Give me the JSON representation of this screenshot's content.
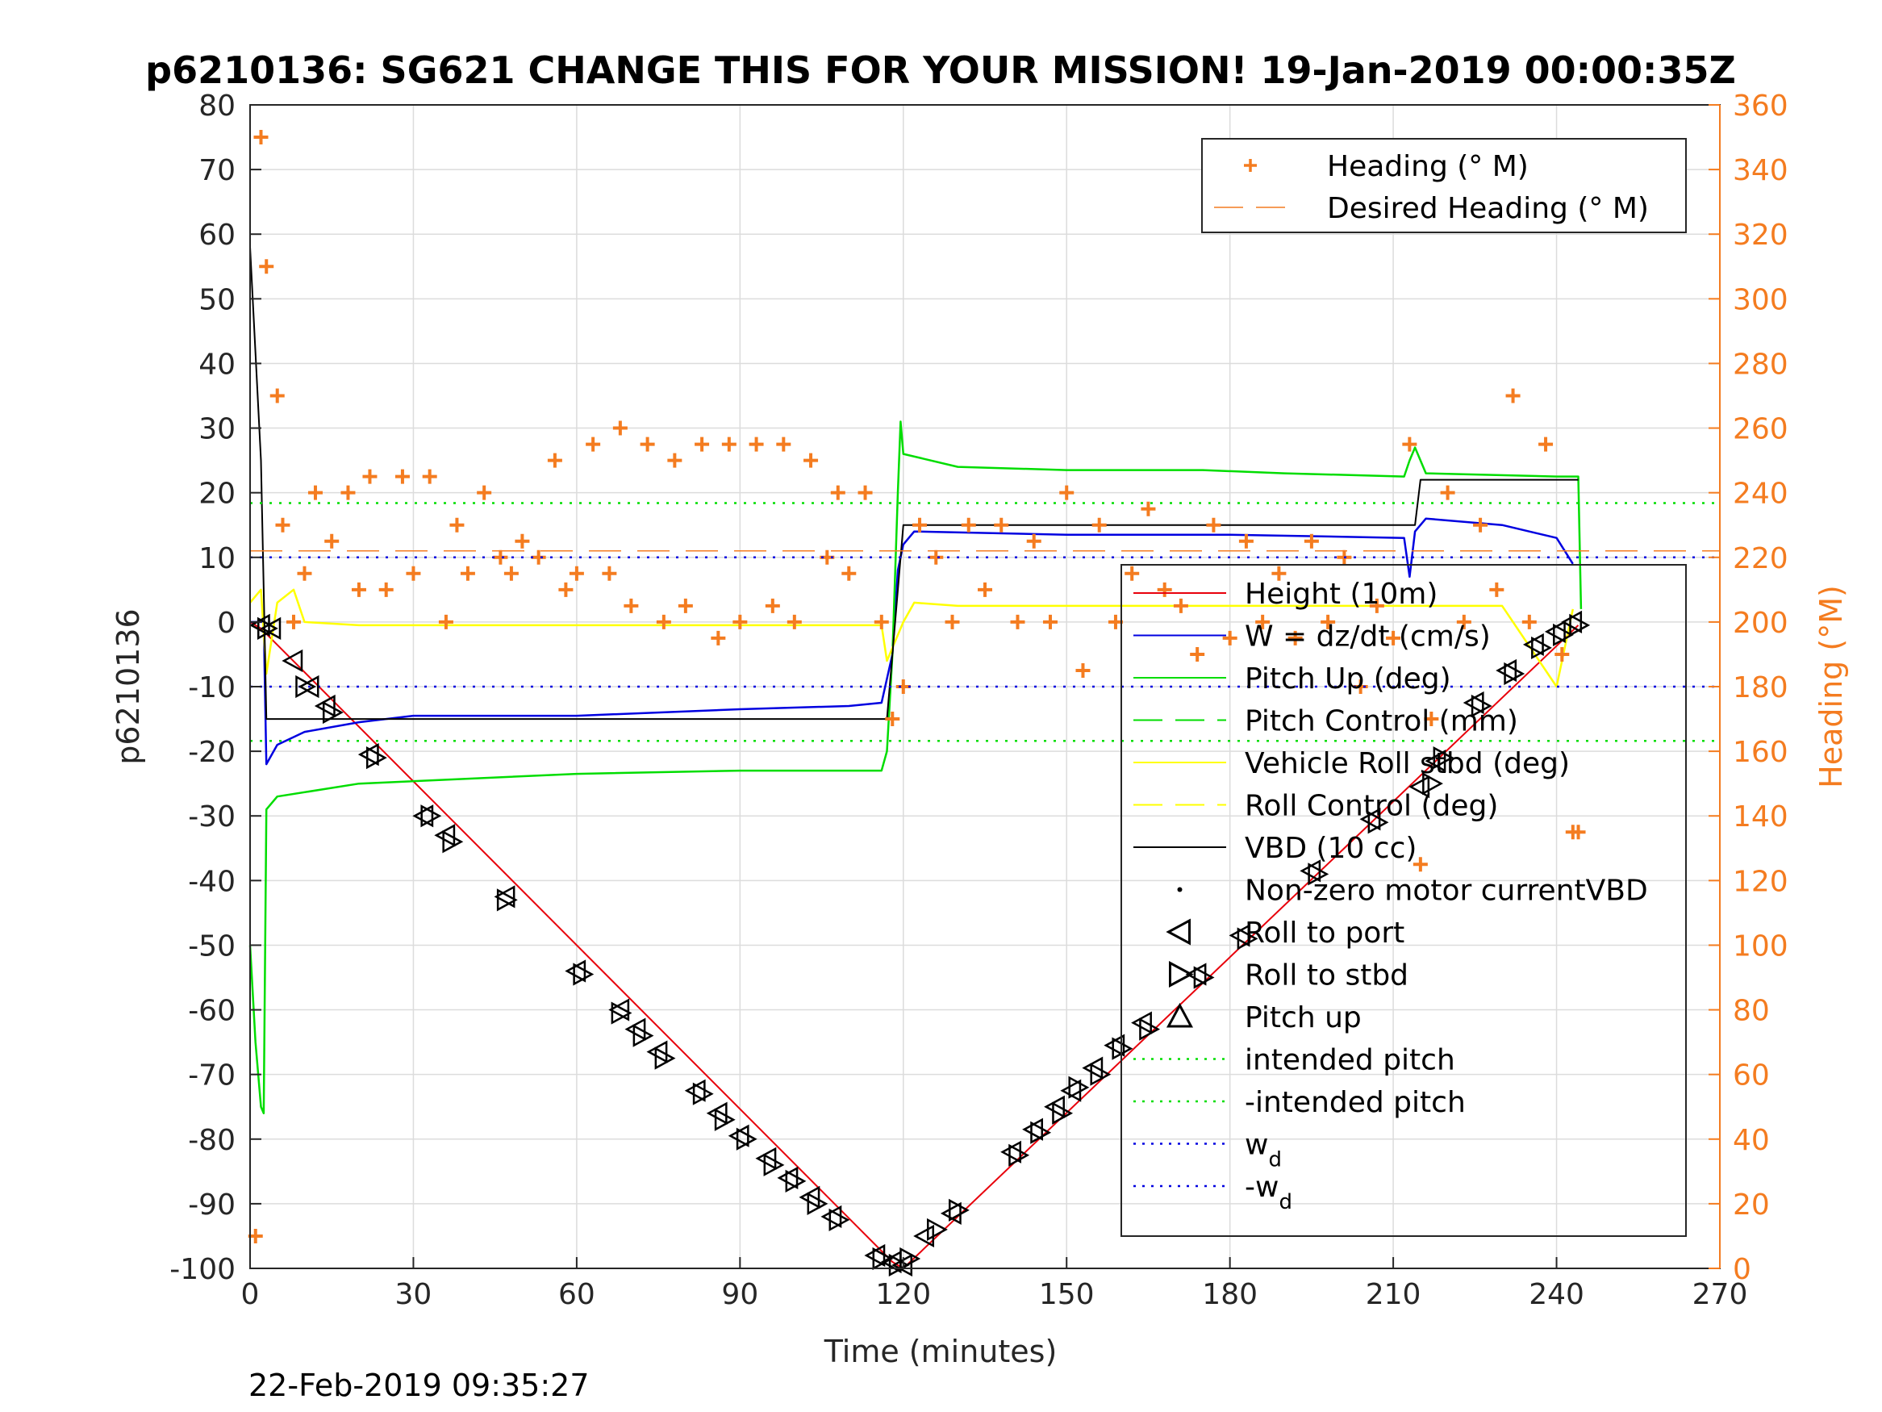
{
  "chart_data": {
    "type": "line",
    "title": "p6210136: SG621 CHANGE THIS FOR YOUR MISSION! 19-Jan-2019 00:00:35Z",
    "xlabel": "Time (minutes)",
    "ylabel": "p6210136",
    "y2label": "Heading (°M)",
    "xlim": [
      0,
      270
    ],
    "ylim": [
      -100,
      80
    ],
    "y2lim": [
      0,
      360
    ],
    "xticks": [
      "0",
      "30",
      "60",
      "90",
      "120",
      "150",
      "180",
      "210",
      "240",
      "270"
    ],
    "yticks": [
      "80",
      "70",
      "60",
      "50",
      "40",
      "30",
      "20",
      "10",
      "0",
      "-10",
      "-20",
      "-30",
      "-40",
      "-50",
      "-60",
      "-70",
      "-80",
      "-90",
      "-100"
    ],
    "y2ticks": [
      "360",
      "340",
      "320",
      "300",
      "280",
      "260",
      "240",
      "220",
      "200",
      "180",
      "160",
      "140",
      "120",
      "100",
      "80",
      "60",
      "40",
      "20",
      "0"
    ],
    "grid": true,
    "timestamp": "22-Feb-2019 09:35:27",
    "colors": {
      "heading": "#f47c20",
      "height": "#e8000b",
      "w": "#0000e0",
      "pitch": "#00dd00",
      "roll": "#ffff00",
      "vbd": "#000000",
      "axis_right": "#f47c20"
    },
    "legend_top": [
      {
        "label": "Heading (° M)",
        "style": "plus-orange"
      },
      {
        "label": "Desired Heading (° M)",
        "style": "dash-orange"
      }
    ],
    "legend_main": [
      {
        "label": "Height (10m)",
        "style": "line-red"
      },
      {
        "label": "W = dz/dt (cm/s)",
        "style": "line-blue"
      },
      {
        "label": "Pitch Up (deg)",
        "style": "line-green"
      },
      {
        "label": "Pitch Control (mm)",
        "style": "dash-green"
      },
      {
        "label": "Vehicle Roll stbd (deg)",
        "style": "line-yellow"
      },
      {
        "label": "Roll Control (deg)",
        "style": "dash-yellow"
      },
      {
        "label": "VBD (10 cc)",
        "style": "line-black"
      },
      {
        "label": "Non-zero motor currentVBD",
        "style": "dot-black"
      },
      {
        "label": "Roll to port",
        "style": "tri-left"
      },
      {
        "label": "Roll to stbd",
        "style": "tri-right"
      },
      {
        "label": "Pitch up",
        "style": "tri-up"
      },
      {
        "label": "intended pitch",
        "style": "dot-green"
      },
      {
        "label": "-intended pitch",
        "style": "dot-green"
      },
      {
        "label": "w",
        "sub": "d",
        "style": "dot-blue"
      },
      {
        "label": "-w",
        "sub": "d",
        "style": "dot-blue"
      }
    ],
    "series": [
      {
        "name": "Height (10m)",
        "axis": "left",
        "x": [
          0,
          2,
          118,
          120,
          244
        ],
        "y": [
          0,
          -1,
          -99,
          -100,
          -0.5
        ]
      },
      {
        "name": "W = dz/dt (cm/s)",
        "axis": "left",
        "x": [
          0,
          2.5,
          3,
          5,
          10,
          20,
          30,
          60,
          90,
          110,
          116,
          118,
          119,
          120,
          122,
          150,
          180,
          212,
          213,
          214,
          216,
          230,
          240,
          243
        ],
        "y": [
          0,
          0,
          -22,
          -19,
          -17,
          -15.5,
          -14.5,
          -14.5,
          -13.5,
          -13,
          -12.5,
          -5,
          8,
          12,
          14,
          13.5,
          13.5,
          13,
          7,
          14,
          16,
          15,
          13,
          9
        ]
      },
      {
        "name": "Pitch Up (deg)",
        "axis": "left",
        "x": [
          0,
          1,
          2,
          2.5,
          3,
          5,
          20,
          60,
          90,
          116,
          117,
          118,
          119,
          119.5,
          120,
          130,
          150,
          175,
          190,
          212,
          213,
          214,
          216,
          240,
          244,
          244.5
        ],
        "y": [
          -50,
          -65,
          -75,
          -76,
          -29,
          -27,
          -25,
          -23.5,
          -23,
          -23,
          -20,
          -5,
          20,
          31,
          26,
          24,
          23.5,
          23.5,
          23,
          22.5,
          25,
          27,
          23,
          22.5,
          22.5,
          2
        ]
      },
      {
        "name": "Vehicle Roll stbd (deg)",
        "axis": "left",
        "x": [
          0,
          2,
          3,
          5,
          8,
          10,
          20,
          40,
          60,
          80,
          100,
          116,
          117,
          120,
          122,
          130,
          160,
          200,
          230,
          240,
          243
        ],
        "y": [
          3,
          5,
          -8,
          3,
          5,
          0,
          -0.5,
          -0.5,
          -0.5,
          -0.5,
          -0.5,
          -0.5,
          -6,
          0,
          3,
          2.5,
          2.5,
          2.5,
          2.5,
          -10,
          2
        ]
      },
      {
        "name": "VBD (10 cc)",
        "axis": "left",
        "x": [
          0,
          2,
          2.5,
          3,
          116,
          117,
          120,
          120.5,
          160,
          200,
          214,
          215,
          244
        ],
        "y": [
          58,
          25,
          5,
          -15,
          -15,
          -15,
          15,
          15,
          15,
          15,
          15,
          22,
          22
        ]
      },
      {
        "name": "Heading (° M)",
        "axis": "right",
        "x": [
          1,
          2,
          3,
          5,
          6,
          8,
          10,
          12,
          15,
          18,
          20,
          22,
          25,
          28,
          30,
          33,
          36,
          38,
          40,
          43,
          46,
          48,
          50,
          53,
          56,
          58,
          60,
          63,
          66,
          68,
          70,
          73,
          76,
          78,
          80,
          83,
          86,
          88,
          90,
          93,
          96,
          98,
          100,
          103,
          106,
          108,
          110,
          113,
          116,
          118,
          120,
          123,
          126,
          129,
          132,
          135,
          138,
          141,
          144,
          147,
          150,
          153,
          156,
          159,
          162,
          165,
          168,
          171,
          174,
          177,
          180,
          183,
          186,
          189,
          192,
          195,
          198,
          201,
          204,
          207,
          210,
          213,
          215,
          217,
          220,
          223,
          226,
          229,
          232,
          235,
          238,
          241,
          243,
          244
        ],
        "y": [
          10,
          350,
          310,
          270,
          230,
          200,
          215,
          240,
          225,
          240,
          210,
          245,
          210,
          245,
          215,
          245,
          200,
          230,
          215,
          240,
          220,
          215,
          225,
          220,
          250,
          210,
          215,
          255,
          215,
          260,
          205,
          255,
          200,
          250,
          205,
          255,
          195,
          255,
          200,
          255,
          205,
          255,
          200,
          250,
          220,
          240,
          215,
          240,
          200,
          170,
          180,
          230,
          220,
          200,
          230,
          210,
          230,
          200,
          225,
          200,
          240,
          185,
          230,
          200,
          215,
          235,
          210,
          205,
          190,
          230,
          195,
          225,
          200,
          215,
          195,
          225,
          200,
          220,
          180,
          205,
          195,
          255,
          125,
          170,
          240,
          200,
          230,
          210,
          270,
          200,
          255,
          190,
          135,
          135
        ]
      },
      {
        "name": "intended pitch",
        "axis": "left",
        "constant": 18.4
      },
      {
        "name": "-intended pitch",
        "axis": "left",
        "constant": -18.4
      },
      {
        "name": "w_d",
        "axis": "left",
        "constant": 10
      },
      {
        "name": "-w_d",
        "axis": "left",
        "constant": -10
      },
      {
        "name": "Desired Heading (° M)",
        "axis": "right",
        "constant": 222
      },
      {
        "name": "Roll to stbd",
        "axis": "left",
        "markers": "right-triangle",
        "x": [
          3,
          10,
          15,
          23,
          33,
          37,
          47,
          61,
          68,
          72,
          76,
          83,
          87,
          91,
          96,
          100,
          104,
          108,
          116,
          119,
          121,
          126,
          130,
          141,
          145,
          149,
          152,
          156,
          160,
          165,
          175,
          183,
          196,
          207,
          217,
          219,
          226,
          232,
          237,
          241,
          244
        ],
        "y": [
          -1,
          -10,
          -14,
          -21,
          -30,
          -34,
          -43,
          -54.5,
          -60.5,
          -64,
          -67.5,
          -73,
          -77,
          -80,
          -84,
          -86.5,
          -90,
          -92.5,
          -98.5,
          -99.5,
          -98.5,
          -94,
          -91,
          -82.5,
          -79,
          -76,
          -72,
          -70,
          -66,
          -63,
          -55,
          -49,
          -39,
          -31,
          -25,
          -21,
          -13,
          -8,
          -4,
          -2,
          -0.5
        ]
      },
      {
        "name": "Roll to port",
        "axis": "left",
        "markers": "left-triangle",
        "x": [
          2,
          4,
          8,
          11,
          14,
          22,
          32,
          36,
          47,
          60,
          68,
          71,
          75,
          82,
          86,
          90,
          95,
          99,
          103,
          107,
          115,
          118,
          120,
          124,
          129,
          140,
          144,
          148,
          151,
          155,
          159,
          164,
          174,
          182,
          195,
          206,
          215,
          218,
          225,
          231,
          236,
          240,
          243
        ],
        "y": [
          -0.5,
          -1,
          -6,
          -10,
          -13,
          -20.5,
          -30,
          -33,
          -42.5,
          -54,
          -60,
          -63,
          -66.5,
          -72.5,
          -76,
          -79.5,
          -83,
          -86,
          -89,
          -92,
          -98,
          -99,
          -99.5,
          -95,
          -91.5,
          -82,
          -78.5,
          -75,
          -72.5,
          -69,
          -65.5,
          -62,
          -54.5,
          -48.5,
          -38.5,
          -30.5,
          -25.5,
          -21.5,
          -12.5,
          -7.5,
          -3.5,
          -1.5,
          0
        ]
      }
    ]
  }
}
